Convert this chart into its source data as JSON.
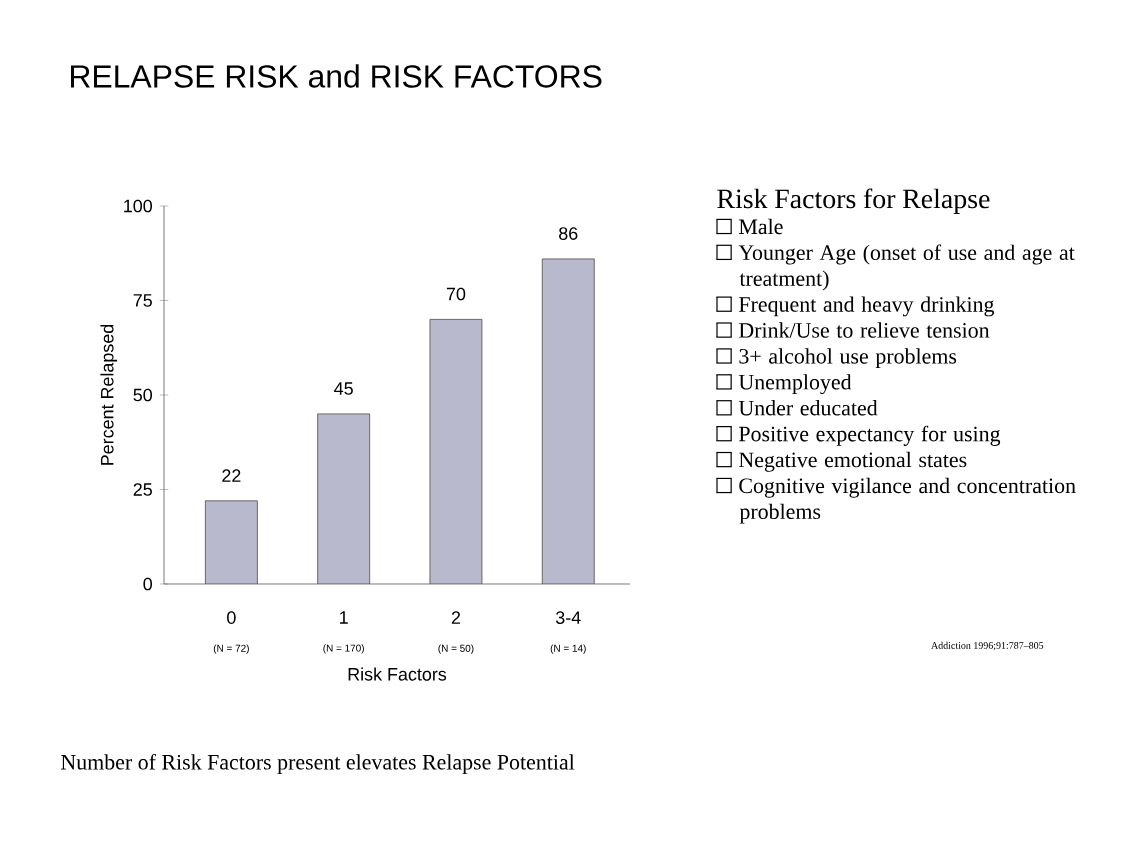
{
  "chart_data": {
    "type": "bar",
    "title": "RELAPSE RISK and RISK FACTORS",
    "xlabel": "Risk Factors",
    "ylabel": "Percent Relapsed",
    "categories": [
      "0",
      "1",
      "2",
      "3-4"
    ],
    "values": [
      22,
      45,
      70,
      86
    ],
    "color": "#b9b9cd",
    "ylim": [
      0,
      100
    ],
    "yticks": [
      0,
      25,
      50,
      75,
      100
    ],
    "data_labels": true,
    "annotations": [
      "(N = 72)",
      "(N = 170)",
      "(N = 50)",
      "(N = 14)",
      "Risk Factors for Relapse",
      "Male",
      "Younger Age (onset of use and age at treatment)",
      "Frequent and heavy drinking",
      "Drink/Use to relieve tension",
      "3+ alcohol use problems",
      "Unemployed",
      "Under educated",
      "Positive expectancy for using",
      "Negative emotional states",
      "Cognitive vigilance and concentration problems",
      "Addiction 1996;91:787–805",
      "Number of Risk Factors present elevates Relapse Potential"
    ]
  }
}
